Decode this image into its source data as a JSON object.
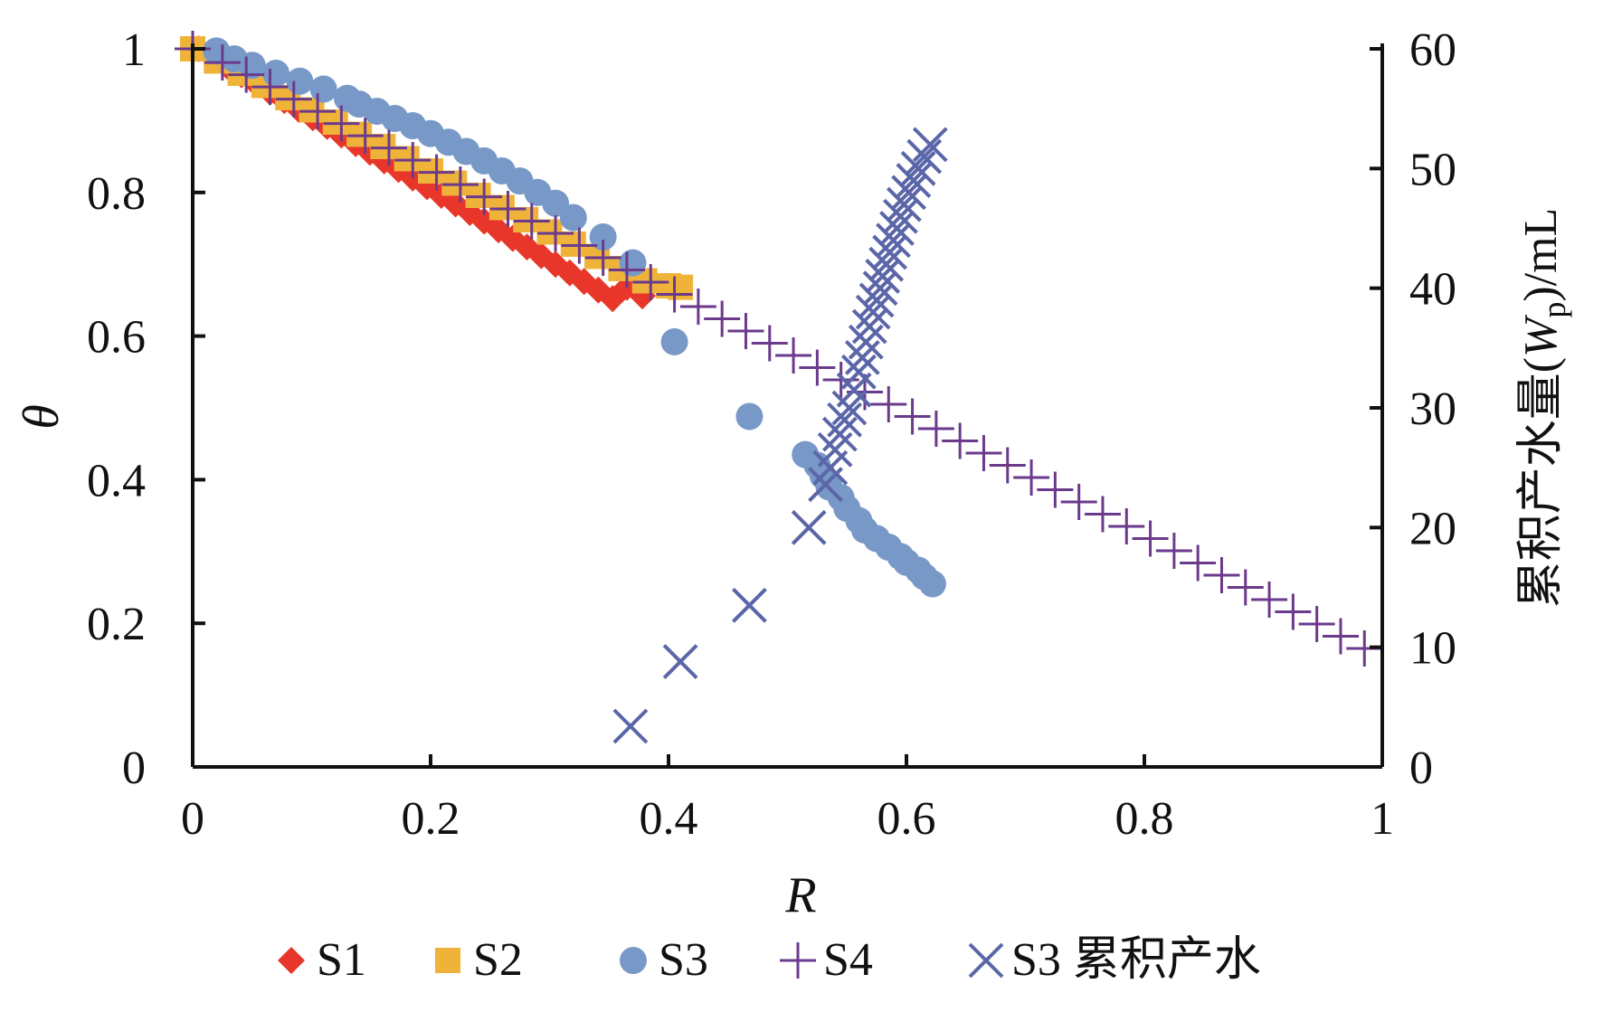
{
  "chart_data": {
    "type": "scatter",
    "title": "",
    "xlabel": "R",
    "ylabel": "θ",
    "y2label": "累积产水量(W_p)/mL",
    "y2label_parts": {
      "prefix": "累积产水量(",
      "var": "W",
      "sub": "p",
      "suffix": ")/mL"
    },
    "xlim": [
      0,
      1
    ],
    "ylim": [
      0,
      1
    ],
    "y2lim": [
      0,
      60
    ],
    "xticks": [
      "0",
      "0.2",
      "0.4",
      "0.6",
      "0.8",
      "1"
    ],
    "yticks": [
      "0",
      "0.2",
      "0.4",
      "0.6",
      "0.8",
      "1"
    ],
    "y2ticks": [
      "0",
      "10",
      "20",
      "30",
      "40",
      "50",
      "60"
    ],
    "grid": false,
    "legend_position": "bottom",
    "series": [
      {
        "name": "S1",
        "marker": "diamond",
        "color": "#e8372a",
        "axis": "left",
        "points": [
          [
            0.005,
            1.0
          ],
          [
            0.017,
            0.988
          ],
          [
            0.029,
            0.976
          ],
          [
            0.041,
            0.964
          ],
          [
            0.053,
            0.952
          ],
          [
            0.065,
            0.94
          ],
          [
            0.077,
            0.928
          ],
          [
            0.089,
            0.916
          ],
          [
            0.101,
            0.904
          ],
          [
            0.113,
            0.892
          ],
          [
            0.125,
            0.88
          ],
          [
            0.137,
            0.868
          ],
          [
            0.149,
            0.856
          ],
          [
            0.161,
            0.844
          ],
          [
            0.173,
            0.832
          ],
          [
            0.185,
            0.82
          ],
          [
            0.197,
            0.808
          ],
          [
            0.209,
            0.796
          ],
          [
            0.221,
            0.784
          ],
          [
            0.233,
            0.772
          ],
          [
            0.245,
            0.76
          ],
          [
            0.257,
            0.748
          ],
          [
            0.269,
            0.736
          ],
          [
            0.281,
            0.724
          ],
          [
            0.293,
            0.712
          ],
          [
            0.305,
            0.7
          ],
          [
            0.317,
            0.688
          ],
          [
            0.329,
            0.676
          ],
          [
            0.341,
            0.664
          ],
          [
            0.353,
            0.652
          ],
          [
            0.365,
            0.668
          ],
          [
            0.378,
            0.656
          ]
        ]
      },
      {
        "name": "S2",
        "marker": "square",
        "color": "#f0b33a",
        "axis": "left",
        "points": [
          [
            0.0,
            1.0
          ],
          [
            0.02,
            0.983
          ],
          [
            0.04,
            0.966
          ],
          [
            0.06,
            0.949
          ],
          [
            0.08,
            0.932
          ],
          [
            0.1,
            0.915
          ],
          [
            0.12,
            0.898
          ],
          [
            0.14,
            0.881
          ],
          [
            0.16,
            0.864
          ],
          [
            0.18,
            0.847
          ],
          [
            0.2,
            0.83
          ],
          [
            0.22,
            0.813
          ],
          [
            0.24,
            0.796
          ],
          [
            0.26,
            0.779
          ],
          [
            0.28,
            0.762
          ],
          [
            0.3,
            0.745
          ],
          [
            0.32,
            0.728
          ],
          [
            0.34,
            0.711
          ],
          [
            0.36,
            0.694
          ],
          [
            0.38,
            0.677
          ],
          [
            0.4,
            0.67
          ],
          [
            0.41,
            0.668
          ]
        ]
      },
      {
        "name": "S3",
        "marker": "circle",
        "color": "#7899c7",
        "axis": "left",
        "points": [
          [
            0.02,
            0.997
          ],
          [
            0.035,
            0.986
          ],
          [
            0.05,
            0.977
          ],
          [
            0.07,
            0.966
          ],
          [
            0.09,
            0.955
          ],
          [
            0.11,
            0.944
          ],
          [
            0.13,
            0.931
          ],
          [
            0.14,
            0.923
          ],
          [
            0.155,
            0.913
          ],
          [
            0.17,
            0.903
          ],
          [
            0.185,
            0.893
          ],
          [
            0.2,
            0.882
          ],
          [
            0.215,
            0.87
          ],
          [
            0.23,
            0.857
          ],
          [
            0.245,
            0.844
          ],
          [
            0.26,
            0.83
          ],
          [
            0.275,
            0.816
          ],
          [
            0.29,
            0.8
          ],
          [
            0.305,
            0.785
          ],
          [
            0.32,
            0.765
          ],
          [
            0.345,
            0.738
          ],
          [
            0.37,
            0.702
          ],
          [
            0.405,
            0.592
          ],
          [
            0.468,
            0.488
          ],
          [
            0.515,
            0.435
          ],
          [
            0.525,
            0.42
          ],
          [
            0.53,
            0.405
          ],
          [
            0.535,
            0.39
          ],
          [
            0.545,
            0.375
          ],
          [
            0.55,
            0.36
          ],
          [
            0.56,
            0.343
          ],
          [
            0.565,
            0.33
          ],
          [
            0.575,
            0.318
          ],
          [
            0.585,
            0.306
          ],
          [
            0.595,
            0.293
          ],
          [
            0.6,
            0.285
          ],
          [
            0.61,
            0.274
          ],
          [
            0.615,
            0.265
          ],
          [
            0.622,
            0.255
          ]
        ]
      },
      {
        "name": "S4",
        "marker": "plus",
        "color": "#6b3a8c",
        "axis": "left",
        "points": [
          [
            0.0,
            1.0
          ],
          [
            0.025,
            0.981
          ],
          [
            0.045,
            0.964
          ],
          [
            0.065,
            0.947
          ],
          [
            0.085,
            0.93
          ],
          [
            0.105,
            0.913
          ],
          [
            0.125,
            0.896
          ],
          [
            0.145,
            0.879
          ],
          [
            0.165,
            0.862
          ],
          [
            0.185,
            0.845
          ],
          [
            0.205,
            0.828
          ],
          [
            0.225,
            0.811
          ],
          [
            0.245,
            0.794
          ],
          [
            0.265,
            0.777
          ],
          [
            0.285,
            0.76
          ],
          [
            0.305,
            0.743
          ],
          [
            0.325,
            0.726
          ],
          [
            0.345,
            0.709
          ],
          [
            0.365,
            0.692
          ],
          [
            0.385,
            0.675
          ],
          [
            0.405,
            0.658
          ],
          [
            0.425,
            0.641
          ],
          [
            0.445,
            0.624
          ],
          [
            0.465,
            0.607
          ],
          [
            0.485,
            0.59
          ],
          [
            0.505,
            0.573
          ],
          [
            0.525,
            0.556
          ],
          [
            0.545,
            0.539
          ],
          [
            0.565,
            0.522
          ],
          [
            0.585,
            0.505
          ],
          [
            0.605,
            0.488
          ],
          [
            0.625,
            0.471
          ],
          [
            0.645,
            0.454
          ],
          [
            0.665,
            0.437
          ],
          [
            0.685,
            0.42
          ],
          [
            0.705,
            0.403
          ],
          [
            0.725,
            0.386
          ],
          [
            0.745,
            0.369
          ],
          [
            0.765,
            0.352
          ],
          [
            0.785,
            0.335
          ],
          [
            0.805,
            0.318
          ],
          [
            0.825,
            0.301
          ],
          [
            0.845,
            0.284
          ],
          [
            0.865,
            0.267
          ],
          [
            0.885,
            0.25
          ],
          [
            0.905,
            0.233
          ],
          [
            0.925,
            0.216
          ],
          [
            0.945,
            0.199
          ],
          [
            0.965,
            0.182
          ],
          [
            0.985,
            0.165
          ]
        ]
      },
      {
        "name": "S3 累积产水",
        "marker": "asterisk",
        "color": "#5b66a8",
        "axis": "right",
        "points": [
          [
            0.368,
            3.4
          ],
          [
            0.41,
            8.8
          ],
          [
            0.468,
            13.5
          ],
          [
            0.518,
            20.0
          ],
          [
            0.532,
            23.6
          ],
          [
            0.536,
            25.0
          ],
          [
            0.54,
            26.5
          ],
          [
            0.544,
            27.8
          ],
          [
            0.548,
            29.0
          ],
          [
            0.552,
            30.0
          ],
          [
            0.556,
            31.5
          ],
          [
            0.56,
            33.0
          ],
          [
            0.563,
            34.2
          ],
          [
            0.566,
            35.5
          ],
          [
            0.569,
            36.8
          ],
          [
            0.572,
            38.0
          ],
          [
            0.575,
            39.0
          ],
          [
            0.578,
            40.0
          ],
          [
            0.58,
            41.0
          ],
          [
            0.583,
            42.0
          ],
          [
            0.586,
            43.0
          ],
          [
            0.589,
            44.0
          ],
          [
            0.592,
            45.0
          ],
          [
            0.595,
            46.0
          ],
          [
            0.598,
            47.0
          ],
          [
            0.602,
            48.0
          ],
          [
            0.606,
            49.0
          ],
          [
            0.61,
            50.0
          ],
          [
            0.615,
            51.0
          ],
          [
            0.62,
            52.0
          ]
        ]
      }
    ]
  }
}
